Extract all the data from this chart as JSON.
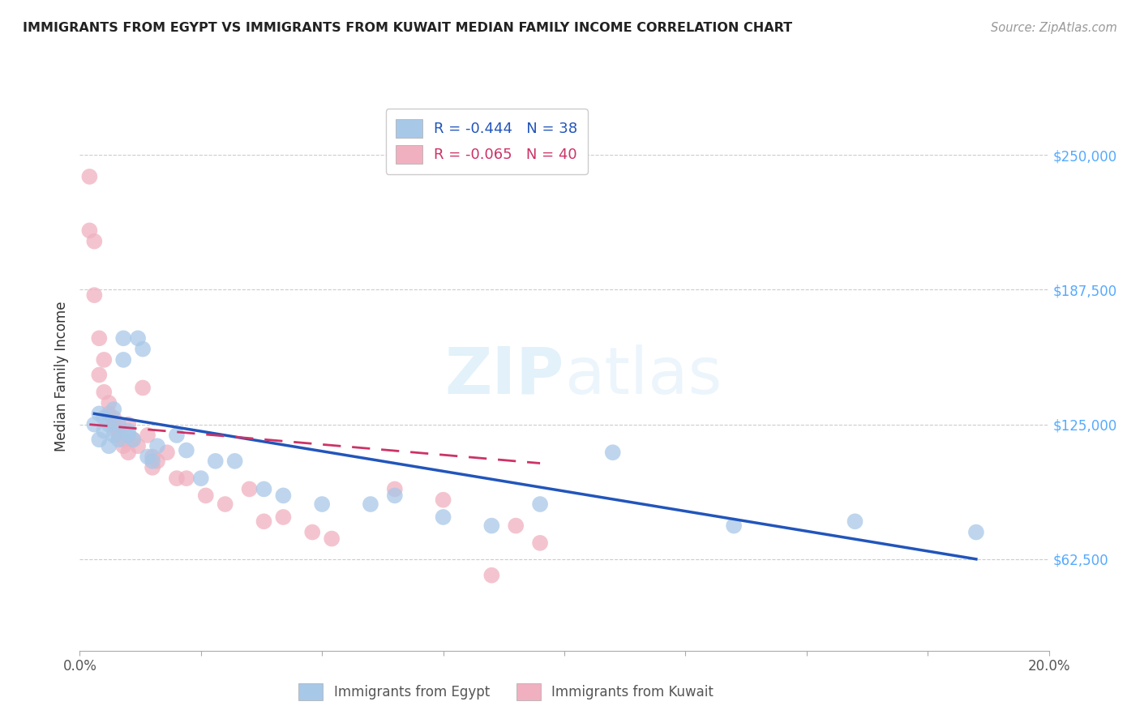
{
  "title": "IMMIGRANTS FROM EGYPT VS IMMIGRANTS FROM KUWAIT MEDIAN FAMILY INCOME CORRELATION CHART",
  "source": "Source: ZipAtlas.com",
  "ylabel": "Median Family Income",
  "x_min": 0.0,
  "x_max": 0.2,
  "y_min": 20000,
  "y_max": 275000,
  "y_tick_labels_right": [
    "$62,500",
    "$125,000",
    "$187,500",
    "$250,000"
  ],
  "y_tick_values_right": [
    62500,
    125000,
    187500,
    250000
  ],
  "legend_egypt": "Immigrants from Egypt",
  "legend_kuwait": "Immigrants from Kuwait",
  "R_egypt": "-0.444",
  "N_egypt": "38",
  "R_kuwait": "-0.065",
  "N_kuwait": "40",
  "egypt_color": "#a8c8e8",
  "kuwait_color": "#f0b0c0",
  "egypt_line_color": "#2255bb",
  "kuwait_line_color": "#cc3366",
  "watermark_color": "#d0e8f8",
  "egypt_x": [
    0.003,
    0.004,
    0.004,
    0.005,
    0.005,
    0.006,
    0.006,
    0.007,
    0.007,
    0.008,
    0.008,
    0.009,
    0.009,
    0.01,
    0.01,
    0.011,
    0.012,
    0.013,
    0.014,
    0.015,
    0.016,
    0.02,
    0.022,
    0.025,
    0.028,
    0.032,
    0.038,
    0.042,
    0.05,
    0.06,
    0.065,
    0.075,
    0.085,
    0.095,
    0.11,
    0.135,
    0.16,
    0.185
  ],
  "egypt_y": [
    125000,
    118000,
    130000,
    122000,
    128000,
    115000,
    125000,
    132000,
    120000,
    125000,
    118000,
    155000,
    165000,
    122000,
    120000,
    118000,
    165000,
    160000,
    110000,
    108000,
    115000,
    120000,
    113000,
    100000,
    108000,
    108000,
    95000,
    92000,
    88000,
    88000,
    92000,
    82000,
    78000,
    88000,
    112000,
    78000,
    80000,
    75000
  ],
  "kuwait_x": [
    0.002,
    0.002,
    0.003,
    0.003,
    0.004,
    0.004,
    0.005,
    0.005,
    0.006,
    0.006,
    0.007,
    0.007,
    0.008,
    0.008,
    0.009,
    0.009,
    0.01,
    0.01,
    0.011,
    0.012,
    0.013,
    0.014,
    0.015,
    0.015,
    0.016,
    0.018,
    0.02,
    0.022,
    0.026,
    0.03,
    0.035,
    0.038,
    0.042,
    0.048,
    0.052,
    0.065,
    0.075,
    0.085,
    0.09,
    0.095
  ],
  "kuwait_y": [
    240000,
    215000,
    210000,
    185000,
    165000,
    148000,
    155000,
    140000,
    135000,
    130000,
    128000,
    125000,
    122000,
    120000,
    118000,
    115000,
    125000,
    112000,
    118000,
    115000,
    142000,
    120000,
    110000,
    105000,
    108000,
    112000,
    100000,
    100000,
    92000,
    88000,
    95000,
    80000,
    82000,
    75000,
    72000,
    95000,
    90000,
    55000,
    78000,
    70000
  ],
  "egypt_line_x": [
    0.003,
    0.185
  ],
  "egypt_line_y": [
    130000,
    62500
  ],
  "kuwait_line_x": [
    0.002,
    0.095
  ],
  "kuwait_line_y": [
    125000,
    107000
  ]
}
